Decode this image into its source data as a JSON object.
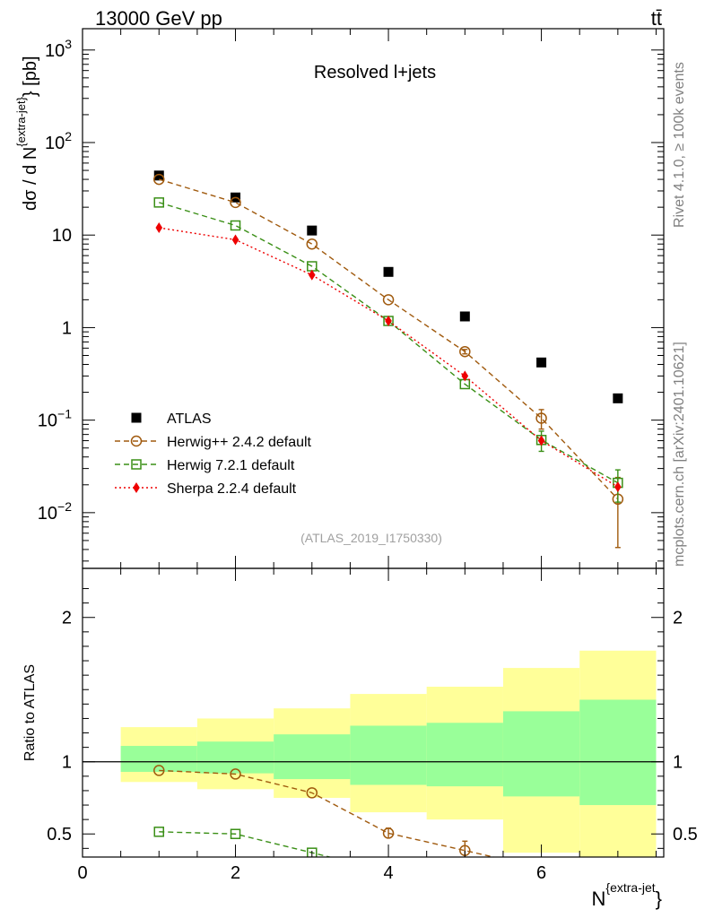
{
  "header": {
    "energy_label": "13000 GeV pp",
    "process_label": "tt̄",
    "rivet_label": "Rivet 4.1.0, ≥ 100k events",
    "mcplots_label": "mcplots.cern.ch [arXiv:2401.10621]"
  },
  "chart_data": [
    {
      "type": "scatter",
      "title": "Resolved l+jets",
      "analysis_id": "(ATLAS_2019_I1750330)",
      "ylabel_main": "dσ / d N",
      "ylabel_sup": "{extra-jet}",
      "ylabel_tail": "} [pb]",
      "yscale": "log",
      "ylim": [
        0.0025,
        1700
      ],
      "xlim": [
        0,
        7.6
      ],
      "y_ticks": [
        {
          "value": 0.01,
          "base": "10",
          "exp": "−2"
        },
        {
          "value": 0.1,
          "base": "10",
          "exp": "−1"
        },
        {
          "value": 1,
          "base": "1",
          "exp": ""
        },
        {
          "value": 10,
          "base": "10",
          "exp": ""
        },
        {
          "value": 100,
          "base": "10",
          "exp": "2"
        },
        {
          "value": 1000,
          "base": "10",
          "exp": "3"
        }
      ],
      "legend_position": "bottom-left",
      "series": [
        {
          "name": "ATLAS",
          "kind": "data",
          "color": "#000000",
          "marker": "square",
          "x": [
            1,
            2,
            3,
            4,
            5,
            6,
            7
          ],
          "y": [
            44,
            25.5,
            11.2,
            4.0,
            1.32,
            0.42,
            0.172
          ],
          "err": [
            0,
            0,
            0,
            0,
            0,
            0,
            0
          ]
        },
        {
          "name": "Herwig++ 2.4.2 default",
          "kind": "mc",
          "color": "#a05a0e",
          "marker": "circle",
          "dash": "6,4",
          "x": [
            1,
            2,
            3,
            4,
            5,
            6,
            7
          ],
          "y": [
            40,
            22.5,
            8.0,
            2.0,
            0.55,
            0.105,
            0.014
          ],
          "err": [
            0,
            0,
            0,
            0,
            0.03,
            0.025,
            0.01
          ]
        },
        {
          "name": "Herwig 7.2.1 default",
          "kind": "mc",
          "color": "#3a8f16",
          "marker": "square_open",
          "dash": "6,4",
          "x": [
            1,
            2,
            3,
            4,
            5,
            6,
            7
          ],
          "y": [
            22.5,
            12.7,
            4.6,
            1.18,
            0.245,
            0.061,
            0.021
          ],
          "err": [
            0,
            0,
            0,
            0,
            0,
            0.015,
            0.008
          ]
        },
        {
          "name": "Sherpa 2.2.4 default",
          "kind": "mc",
          "color": "#ee0000",
          "marker": "diamond",
          "dash": "2,3",
          "x": [
            1,
            2,
            3,
            4,
            5,
            6,
            7
          ],
          "y": [
            12.0,
            8.9,
            3.7,
            1.18,
            0.3,
            0.06,
            0.019
          ],
          "err": [
            0,
            0,
            0,
            0,
            0,
            0,
            0
          ]
        }
      ]
    },
    {
      "type": "scatter",
      "ylabel": "Ratio to ATLAS",
      "xlabel": "N",
      "xlabel_sup": "{extra-jet",
      "xlabel_tail": "}",
      "xlim": [
        0,
        7.6
      ],
      "ylim": [
        0.34,
        2.34
      ],
      "x_ticks": [
        0,
        2,
        4,
        6
      ],
      "y_ticks": [
        0.5,
        1,
        2
      ],
      "reference": 1,
      "bands": [
        {
          "x0": 0.5,
          "x1": 1.5,
          "inner": [
            0.93,
            1.11
          ],
          "outer": [
            0.86,
            1.24
          ]
        },
        {
          "x0": 1.5,
          "x1": 2.5,
          "inner": [
            0.92,
            1.14
          ],
          "outer": [
            0.81,
            1.3
          ]
        },
        {
          "x0": 2.5,
          "x1": 3.5,
          "inner": [
            0.88,
            1.19
          ],
          "outer": [
            0.75,
            1.37
          ]
        },
        {
          "x0": 3.5,
          "x1": 4.5,
          "inner": [
            0.84,
            1.25
          ],
          "outer": [
            0.65,
            1.47
          ]
        },
        {
          "x0": 4.5,
          "x1": 5.5,
          "inner": [
            0.83,
            1.27
          ],
          "outer": [
            0.6,
            1.52
          ]
        },
        {
          "x0": 5.5,
          "x1": 6.5,
          "inner": [
            0.76,
            1.35
          ],
          "outer": [
            0.37,
            1.65
          ]
        },
        {
          "x0": 6.5,
          "x1": 7.5,
          "inner": [
            0.7,
            1.43
          ],
          "outer": [
            0.34,
            1.77
          ]
        }
      ],
      "series": [
        {
          "name": "Herwig++ 2.4.2 default",
          "color": "#a05a0e",
          "marker": "circle",
          "dash": "6,4",
          "x": [
            1,
            2,
            3,
            4,
            5
          ],
          "y": [
            0.94,
            0.915,
            0.785,
            0.505,
            0.385
          ],
          "err": [
            0,
            0,
            0,
            0.035,
            0.065
          ]
        },
        {
          "name": "Herwig 7.2.1 default",
          "color": "#3a8f16",
          "marker": "square_open",
          "dash": "6,4",
          "x": [
            1,
            2,
            3
          ],
          "y": [
            0.515,
            0.5,
            0.37
          ],
          "err": [
            0,
            0,
            0
          ]
        }
      ]
    }
  ],
  "colors": {
    "band_inner": "#99ff99",
    "band_outer": "#ffff99"
  }
}
